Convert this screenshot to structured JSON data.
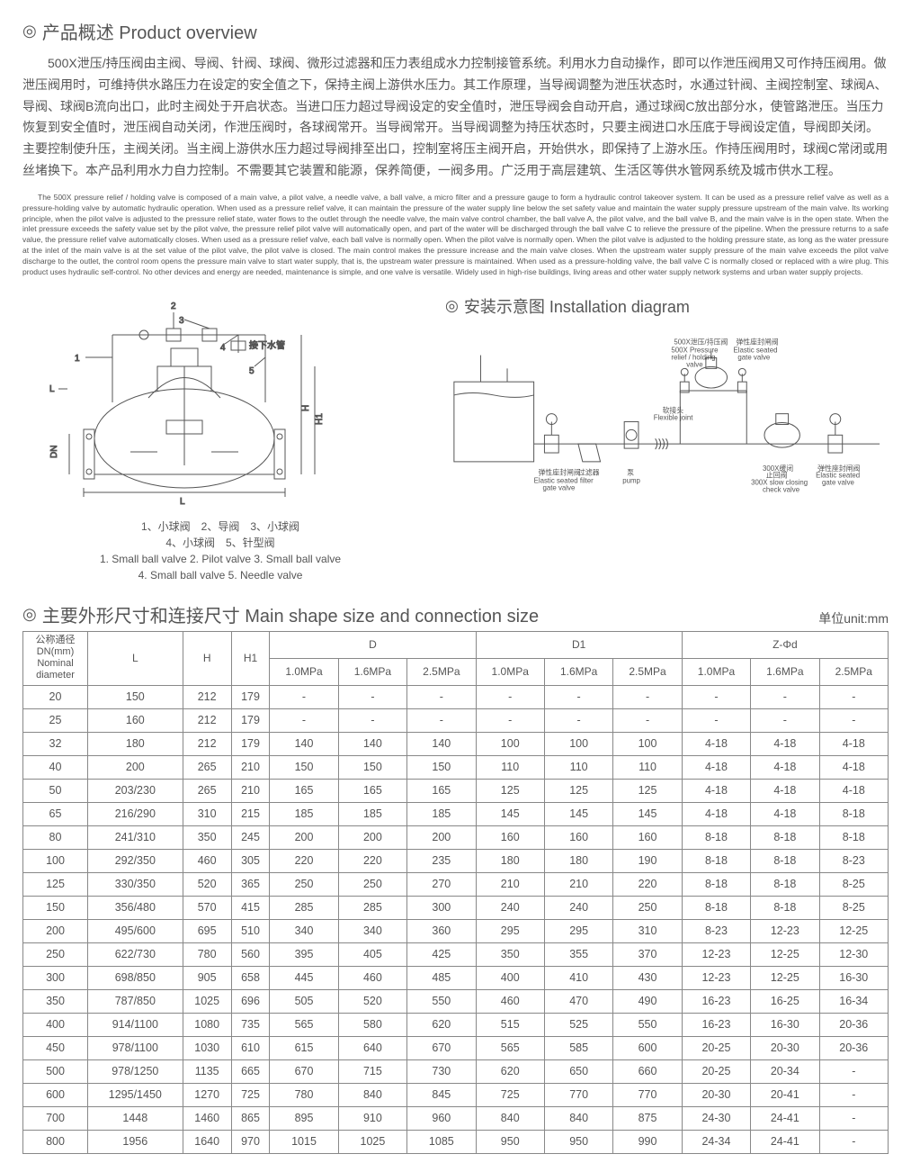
{
  "titles": {
    "overview": "产品概述 Product overview",
    "install": "安装示意图 Installation diagram",
    "table_title": "主要外形尺寸和连接尺寸 Main shape size and connection size",
    "unit": "单位unit:mm"
  },
  "cn_description": "500X泄压/持压阀由主阀、导阀、针阀、球阀、微形过滤器和压力表组成水力控制接管系统。利用水力自动操作，即可以作泄压阀用又可作持压阀用。做泄压阀用时，可维持供水路压力在设定的安全值之下，保持主阀上游供水压力。其工作原理，当导阀调整为泄压状态时，水通过针阀、主阀控制室、球阀A、导阀、球阀B流向出口，此时主阀处于开启状态。当进口压力超过导阀设定的安全值时，泄压导阀会自动开启，通过球阀C放出部分水，使管路泄压。当压力恢复到安全值时，泄压阀自动关闭，作泄压阀时，各球阀常开。当导阀常开。当导阀调整为持压状态时，只要主阀进口水压底于导阀设定值，导阀即关闭。主要控制使升压，主阀关闭。当主阀上游供水压力超过导阀排至出口，控制室将压主阀开启，开始供水，即保持了上游水压。作持压阀用时，球阀C常闭或用丝堵换下。本产品利用水力自力控制。不需要其它装置和能源，保养简便，一阀多用。广泛用于高层建筑、生活区等供水管网系统及城市供水工程。",
  "en_description": "The 500X pressure relief / holding valve is composed of a main valve, a pilot valve, a needle valve, a ball valve, a micro filter and a pressure gauge to form a hydraulic control takeover system. It can be used as a pressure relief valve as well as a pressure-holding valve by automatic hydraulic operation. When used as a pressure relief valve, it can maintain the pressure of the water supply line below the set safety value and maintain the water supply pressure upstream of the main valve. Its working principle, when the pilot valve is adjusted to the pressure relief state, water flows to the outlet through the needle valve, the main valve control chamber, the ball valve A, the pilot valve, and the ball valve B, and the main valve is in the open state. When the inlet pressure exceeds the safety value set by the pilot valve, the pressure relief pilot valve will automatically open, and part of the water will be discharged through the ball valve C to relieve the pressure of the pipeline. When the pressure returns to a safe value, the pressure relief valve automatically closes. When used as a pressure relief valve, each ball valve is normally open. When the pilot valve is normally open. When the pilot valve is adjusted to the holding pressure state, as long as the water pressure at the inlet of the main valve is at the set value of the pilot valve, the pilot valve is closed. The main control makes the pressure increase and the main valve closes. When the upstream water supply pressure of the main valve exceeds the pilot valve discharge to the outlet, the control room opens the pressure main valve to start water supply, that is, the upstream water pressure is maintained. When used as a pressure-holding valve, the ball valve C is normally closed or replaced with a wire plug. This product uses hydraulic self-control. No other devices and energy are needed, maintenance is simple, and one valve is versatile. Widely used in high-rise buildings, living areas and other water supply network systems and urban water supply projects.",
  "diagram_caption_cn": "1、小球阀　2、导阀　3、小球阀\n4、小球阀　5、针型阀",
  "diagram_caption_en": "1. Small ball valve 2. Pilot valve 3. Small ball valve\n4. Small ball valve 5. Needle valve",
  "diagram_labels": {
    "water_pipe": "接下水管",
    "L": "L",
    "H": "H",
    "H1": "H1",
    "DN": "DN"
  },
  "install_labels": {
    "gate_valve_cn": "弹性座封闸阀",
    "gate_valve_en": "Elastic seated gate valve",
    "filter_cn": "过滤器",
    "filter_en": "filter",
    "pump_cn": "泵",
    "pump_en": "pump",
    "valve500_cn": "500X泄压/持压阀",
    "valve500_en": "500X Pressure relief / holding valve",
    "flex_cn": "软接头",
    "flex_en": "Flexible joint",
    "check_cn": "300X缓闭止回阀",
    "check_en": "300X slow closing check valve",
    "gate2_cn": "弹性座封闸阀",
    "gate2_en": "Elastic seated gate valve"
  },
  "table": {
    "headers": {
      "nominal_cn": "公称通径",
      "nominal_dn": "DN(mm)",
      "nominal_en1": "Nominal",
      "nominal_en2": "diameter",
      "L": "L",
      "H": "H",
      "H1": "H1",
      "D": "D",
      "D1": "D1",
      "Z": "Z-Φd",
      "p10": "1.0MPa",
      "p16": "1.6MPa",
      "p25": "2.5MPa"
    },
    "rows": [
      {
        "dn": "20",
        "L": "150",
        "H": "212",
        "H1": "179",
        "D": [
          "-",
          "-",
          "-"
        ],
        "D1": [
          "-",
          "-",
          "-"
        ],
        "Z": [
          "-",
          "-",
          "-"
        ]
      },
      {
        "dn": "25",
        "L": "160",
        "H": "212",
        "H1": "179",
        "D": [
          "-",
          "-",
          "-"
        ],
        "D1": [
          "-",
          "-",
          "-"
        ],
        "Z": [
          "-",
          "-",
          "-"
        ]
      },
      {
        "dn": "32",
        "L": "180",
        "H": "212",
        "H1": "179",
        "D": [
          "140",
          "140",
          "140"
        ],
        "D1": [
          "100",
          "100",
          "100"
        ],
        "Z": [
          "4-18",
          "4-18",
          "4-18"
        ]
      },
      {
        "dn": "40",
        "L": "200",
        "H": "265",
        "H1": "210",
        "D": [
          "150",
          "150",
          "150"
        ],
        "D1": [
          "110",
          "110",
          "110"
        ],
        "Z": [
          "4-18",
          "4-18",
          "4-18"
        ]
      },
      {
        "dn": "50",
        "L": "203/230",
        "H": "265",
        "H1": "210",
        "D": [
          "165",
          "165",
          "165"
        ],
        "D1": [
          "125",
          "125",
          "125"
        ],
        "Z": [
          "4-18",
          "4-18",
          "4-18"
        ]
      },
      {
        "dn": "65",
        "L": "216/290",
        "H": "310",
        "H1": "215",
        "D": [
          "185",
          "185",
          "185"
        ],
        "D1": [
          "145",
          "145",
          "145"
        ],
        "Z": [
          "4-18",
          "4-18",
          "8-18"
        ]
      },
      {
        "dn": "80",
        "L": "241/310",
        "H": "350",
        "H1": "245",
        "D": [
          "200",
          "200",
          "200"
        ],
        "D1": [
          "160",
          "160",
          "160"
        ],
        "Z": [
          "8-18",
          "8-18",
          "8-18"
        ]
      },
      {
        "dn": "100",
        "L": "292/350",
        "H": "460",
        "H1": "305",
        "D": [
          "220",
          "220",
          "235"
        ],
        "D1": [
          "180",
          "180",
          "190"
        ],
        "Z": [
          "8-18",
          "8-18",
          "8-23"
        ]
      },
      {
        "dn": "125",
        "L": "330/350",
        "H": "520",
        "H1": "365",
        "D": [
          "250",
          "250",
          "270"
        ],
        "D1": [
          "210",
          "210",
          "220"
        ],
        "Z": [
          "8-18",
          "8-18",
          "8-25"
        ]
      },
      {
        "dn": "150",
        "L": "356/480",
        "H": "570",
        "H1": "415",
        "D": [
          "285",
          "285",
          "300"
        ],
        "D1": [
          "240",
          "240",
          "250"
        ],
        "Z": [
          "8-18",
          "8-18",
          "8-25"
        ]
      },
      {
        "dn": "200",
        "L": "495/600",
        "H": "695",
        "H1": "510",
        "D": [
          "340",
          "340",
          "360"
        ],
        "D1": [
          "295",
          "295",
          "310"
        ],
        "Z": [
          "8-23",
          "12-23",
          "12-25"
        ]
      },
      {
        "dn": "250",
        "L": "622/730",
        "H": "780",
        "H1": "560",
        "D": [
          "395",
          "405",
          "425"
        ],
        "D1": [
          "350",
          "355",
          "370"
        ],
        "Z": [
          "12-23",
          "12-25",
          "12-30"
        ]
      },
      {
        "dn": "300",
        "L": "698/850",
        "H": "905",
        "H1": "658",
        "D": [
          "445",
          "460",
          "485"
        ],
        "D1": [
          "400",
          "410",
          "430"
        ],
        "Z": [
          "12-23",
          "12-25",
          "16-30"
        ]
      },
      {
        "dn": "350",
        "L": "787/850",
        "H": "1025",
        "H1": "696",
        "D": [
          "505",
          "520",
          "550"
        ],
        "D1": [
          "460",
          "470",
          "490"
        ],
        "Z": [
          "16-23",
          "16-25",
          "16-34"
        ]
      },
      {
        "dn": "400",
        "L": "914/1100",
        "H": "1080",
        "H1": "735",
        "D": [
          "565",
          "580",
          "620"
        ],
        "D1": [
          "515",
          "525",
          "550"
        ],
        "Z": [
          "16-23",
          "16-30",
          "20-36"
        ]
      },
      {
        "dn": "450",
        "L": "978/1100",
        "H": "1030",
        "H1": "610",
        "D": [
          "615",
          "640",
          "670"
        ],
        "D1": [
          "565",
          "585",
          "600"
        ],
        "Z": [
          "20-25",
          "20-30",
          "20-36"
        ]
      },
      {
        "dn": "500",
        "L": "978/1250",
        "H": "1135",
        "H1": "665",
        "D": [
          "670",
          "715",
          "730"
        ],
        "D1": [
          "620",
          "650",
          "660"
        ],
        "Z": [
          "20-25",
          "20-34",
          "-"
        ]
      },
      {
        "dn": "600",
        "L": "1295/1450",
        "H": "1270",
        "H1": "725",
        "D": [
          "780",
          "840",
          "845"
        ],
        "D1": [
          "725",
          "770",
          "770"
        ],
        "Z": [
          "20-30",
          "20-41",
          "-"
        ]
      },
      {
        "dn": "700",
        "L": "1448",
        "H": "1460",
        "H1": "865",
        "D": [
          "895",
          "910",
          "960"
        ],
        "D1": [
          "840",
          "840",
          "875"
        ],
        "Z": [
          "24-30",
          "24-41",
          "-"
        ]
      },
      {
        "dn": "800",
        "L": "1956",
        "H": "1640",
        "H1": "970",
        "D": [
          "1015",
          "1025",
          "1085"
        ],
        "D1": [
          "950",
          "950",
          "990"
        ],
        "Z": [
          "24-34",
          "24-41",
          "-"
        ]
      }
    ]
  }
}
